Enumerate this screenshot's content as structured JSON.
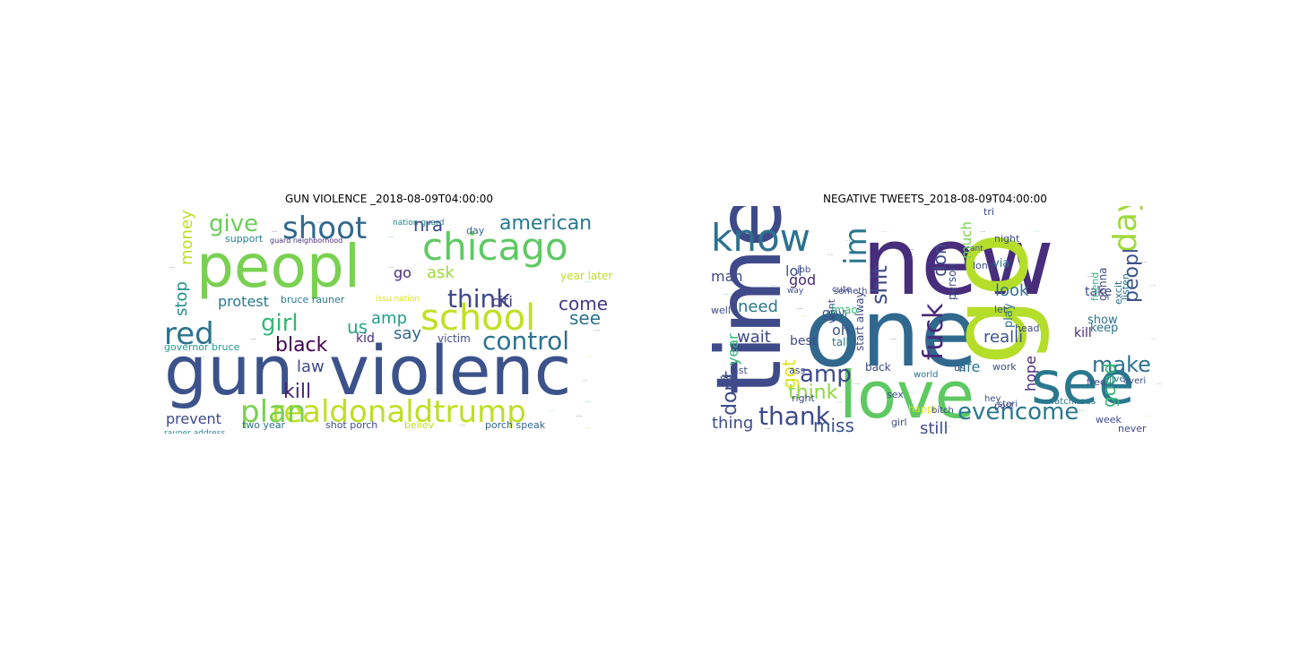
{
  "panels": [
    {
      "title": "GUN VIOLENCE _2018-08-09T04:00:00",
      "words": [
        {
          "t": "gun",
          "c": "#3b528b"
        },
        {
          "t": "violenc",
          "c": "#3b528b"
        },
        {
          "t": "peopl",
          "c": "#7ad151"
        },
        {
          "t": "chicago",
          "c": "#5ec962"
        },
        {
          "t": "school",
          "c": "#c2df23"
        },
        {
          "t": "shoot",
          "c": "#31688e"
        },
        {
          "t": "realdonaldtrump",
          "c": "#bddf26"
        },
        {
          "t": "plan",
          "c": "#7ad151"
        },
        {
          "t": "red",
          "c": "#2c728e"
        },
        {
          "t": "control",
          "c": "#2c728e"
        },
        {
          "t": "think",
          "c": "#3e4a89"
        },
        {
          "t": "give",
          "c": "#6ccd5a"
        },
        {
          "t": "american",
          "c": "#2a788e"
        },
        {
          "t": "girl",
          "c": "#35b779"
        },
        {
          "t": "black",
          "c": "#440154"
        },
        {
          "t": "kill",
          "c": "#482878"
        },
        {
          "t": "nra",
          "c": "#3e4a89"
        },
        {
          "t": "money",
          "c": "#bddf26"
        },
        {
          "t": "stop",
          "c": "#21918c"
        },
        {
          "t": "see",
          "c": "#2c728e"
        },
        {
          "t": "come",
          "c": "#443983"
        },
        {
          "t": "amp",
          "c": "#1f9e89"
        },
        {
          "t": "ask",
          "c": "#9fda3a"
        },
        {
          "t": "us",
          "c": "#22a884"
        },
        {
          "t": "say",
          "c": "#31688e"
        },
        {
          "t": "law",
          "c": "#3e4a89"
        },
        {
          "t": "protest",
          "c": "#2a788e"
        },
        {
          "t": "prevent",
          "c": "#3e4a89"
        },
        {
          "t": "kid",
          "c": "#472d7b"
        },
        {
          "t": "citi",
          "c": "#443983"
        },
        {
          "t": "go",
          "c": "#472d7b"
        },
        {
          "t": "victim",
          "c": "#3e4a89"
        },
        {
          "t": "year later",
          "c": "#bddf26"
        },
        {
          "t": "bruce rauner",
          "c": "#2a788e"
        },
        {
          "t": "support",
          "c": "#26828e"
        },
        {
          "t": "two year",
          "c": "#2c728e"
        },
        {
          "t": "shot porch",
          "c": "#3e4a89"
        },
        {
          "t": "porch speak",
          "c": "#31688e"
        },
        {
          "t": "believ",
          "c": "#c2df23"
        },
        {
          "t": "governor bruce",
          "c": "#1f9e89"
        },
        {
          "t": "day",
          "c": "#31688e"
        },
        {
          "t": "nation guard",
          "c": "#26828e"
        },
        {
          "t": "guard neighborhood",
          "c": "#46327e"
        },
        {
          "t": "rauner address",
          "c": "#26828e"
        },
        {
          "t": "issu nation",
          "c": "#dde318"
        }
      ]
    },
    {
      "title": "NEGATIVE TWEETS_2018-08-09T04:00:00",
      "words": [
        {
          "t": "new",
          "c": "#472d7b"
        },
        {
          "t": "one",
          "c": "#31688e"
        },
        {
          "t": "go",
          "c": "#b5de2b"
        },
        {
          "t": "time",
          "c": "#3e4a89"
        },
        {
          "t": "love",
          "c": "#5ec962"
        },
        {
          "t": "see",
          "c": "#2a788e"
        },
        {
          "t": "know",
          "c": "#2c728e"
        },
        {
          "t": "day",
          "c": "#9fda3a"
        },
        {
          "t": "im",
          "c": "#2a788e"
        },
        {
          "t": "fuck",
          "c": "#482878"
        },
        {
          "t": "evencome",
          "c": "#2a788e"
        },
        {
          "t": "thank",
          "c": "#3e4a89"
        },
        {
          "t": "amp",
          "c": "#3e4a89"
        },
        {
          "t": "make",
          "c": "#2c728e"
        },
        {
          "t": "peopl",
          "c": "#3b528b"
        },
        {
          "t": "need",
          "c": "#2a788e"
        },
        {
          "t": "dont",
          "c": "#3e4a89"
        },
        {
          "t": "year",
          "c": "#35b779"
        },
        {
          "t": "think",
          "c": "#8fd744"
        },
        {
          "t": "don",
          "c": "#3e4a89"
        },
        {
          "t": "shit",
          "c": "#3e4a89"
        },
        {
          "t": "miss",
          "c": "#3b528b"
        },
        {
          "t": "good",
          "c": "#35b779"
        },
        {
          "t": "realli",
          "c": "#3b528b"
        },
        {
          "t": "look",
          "c": "#2c728e"
        },
        {
          "t": "god",
          "c": "#482878"
        },
        {
          "t": "wait",
          "c": "#3e4a89"
        },
        {
          "t": "lol",
          "c": "#3b528b"
        },
        {
          "t": "oh",
          "c": "#3b528b"
        },
        {
          "t": "got",
          "c": "#dde318"
        },
        {
          "t": "still",
          "c": "#3e4a89"
        },
        {
          "t": "thing",
          "c": "#3e4a89"
        },
        {
          "t": "life",
          "c": "#2a788e"
        },
        {
          "t": "hope",
          "c": "#482878"
        },
        {
          "t": "man",
          "c": "#3e4a89"
        },
        {
          "t": "much",
          "c": "#7ad151"
        },
        {
          "t": "watchhous",
          "c": "#2a788e"
        },
        {
          "t": "stori",
          "c": "#3b528b"
        },
        {
          "t": "work",
          "c": "#3e4a89"
        },
        {
          "t": "take",
          "c": "#3e4a89"
        },
        {
          "t": "kill",
          "c": "#482878"
        },
        {
          "t": "show",
          "c": "#2c728e"
        },
        {
          "t": "keep",
          "c": "#2c728e"
        },
        {
          "t": "gonna",
          "c": "#3e4a89"
        },
        {
          "t": "person",
          "c": "#3e4a89"
        },
        {
          "t": "via",
          "c": "#2c728e"
        },
        {
          "t": "play",
          "c": "#2c728e"
        },
        {
          "t": "let",
          "c": "#3e4a89"
        },
        {
          "t": "best",
          "c": "#3e4a89"
        },
        {
          "t": "guy",
          "c": "#3e4a89"
        },
        {
          "t": "feel",
          "c": "#2c728e"
        },
        {
          "t": "talk",
          "c": "#2a788e"
        },
        {
          "t": "start alway",
          "c": "#3e4a89"
        },
        {
          "t": "back",
          "c": "#3e4a89"
        },
        {
          "t": "sex",
          "c": "#3e4a89"
        },
        {
          "t": "happi",
          "c": "#dde318"
        },
        {
          "t": "girl",
          "c": "#3e4a89"
        },
        {
          "t": "never",
          "c": "#3e4a89"
        },
        {
          "t": "week",
          "c": "#3e4a89"
        },
        {
          "t": "head",
          "c": "#3e4a89"
        },
        {
          "t": "night",
          "c": "#3e4a89"
        },
        {
          "t": "long",
          "c": "#3e4a89"
        },
        {
          "t": "tri",
          "c": "#3e4a89"
        },
        {
          "t": "lmao",
          "c": "#35b779"
        },
        {
          "t": "want",
          "c": "#3e4a89"
        },
        {
          "t": "world",
          "c": "#2c728e"
        },
        {
          "t": "friend",
          "c": "#35b779"
        },
        {
          "t": "excit",
          "c": "#2c728e"
        },
        {
          "t": "listen",
          "c": "#2c728e"
        },
        {
          "t": "free",
          "c": "#3e4a89"
        },
        {
          "t": "everi",
          "c": "#3e4a89"
        },
        {
          "t": "hey",
          "c": "#3e4a89"
        },
        {
          "t": "post",
          "c": "#3e4a89"
        },
        {
          "t": "last",
          "c": "#3e4a89"
        },
        {
          "t": "ass",
          "c": "#3e4a89"
        },
        {
          "t": "ye",
          "c": "#3e4a89"
        },
        {
          "t": "live",
          "c": "#2c728e"
        },
        {
          "t": "ll",
          "c": "#2c728e"
        },
        {
          "t": "right",
          "c": "#3e4a89"
        },
        {
          "t": "cute",
          "c": "#3e4a89"
        },
        {
          "t": "job",
          "c": "#3e4a89"
        },
        {
          "t": "well",
          "c": "#3e4a89"
        },
        {
          "t": "way",
          "c": "#3e4a89"
        },
        {
          "t": "someth",
          "c": "#3e4a89"
        },
        {
          "t": "bitch",
          "c": "#3e4a89"
        },
        {
          "t": "us",
          "c": "#3e4a89"
        },
        {
          "t": "cant",
          "c": "#3e4a89"
        }
      ]
    }
  ]
}
